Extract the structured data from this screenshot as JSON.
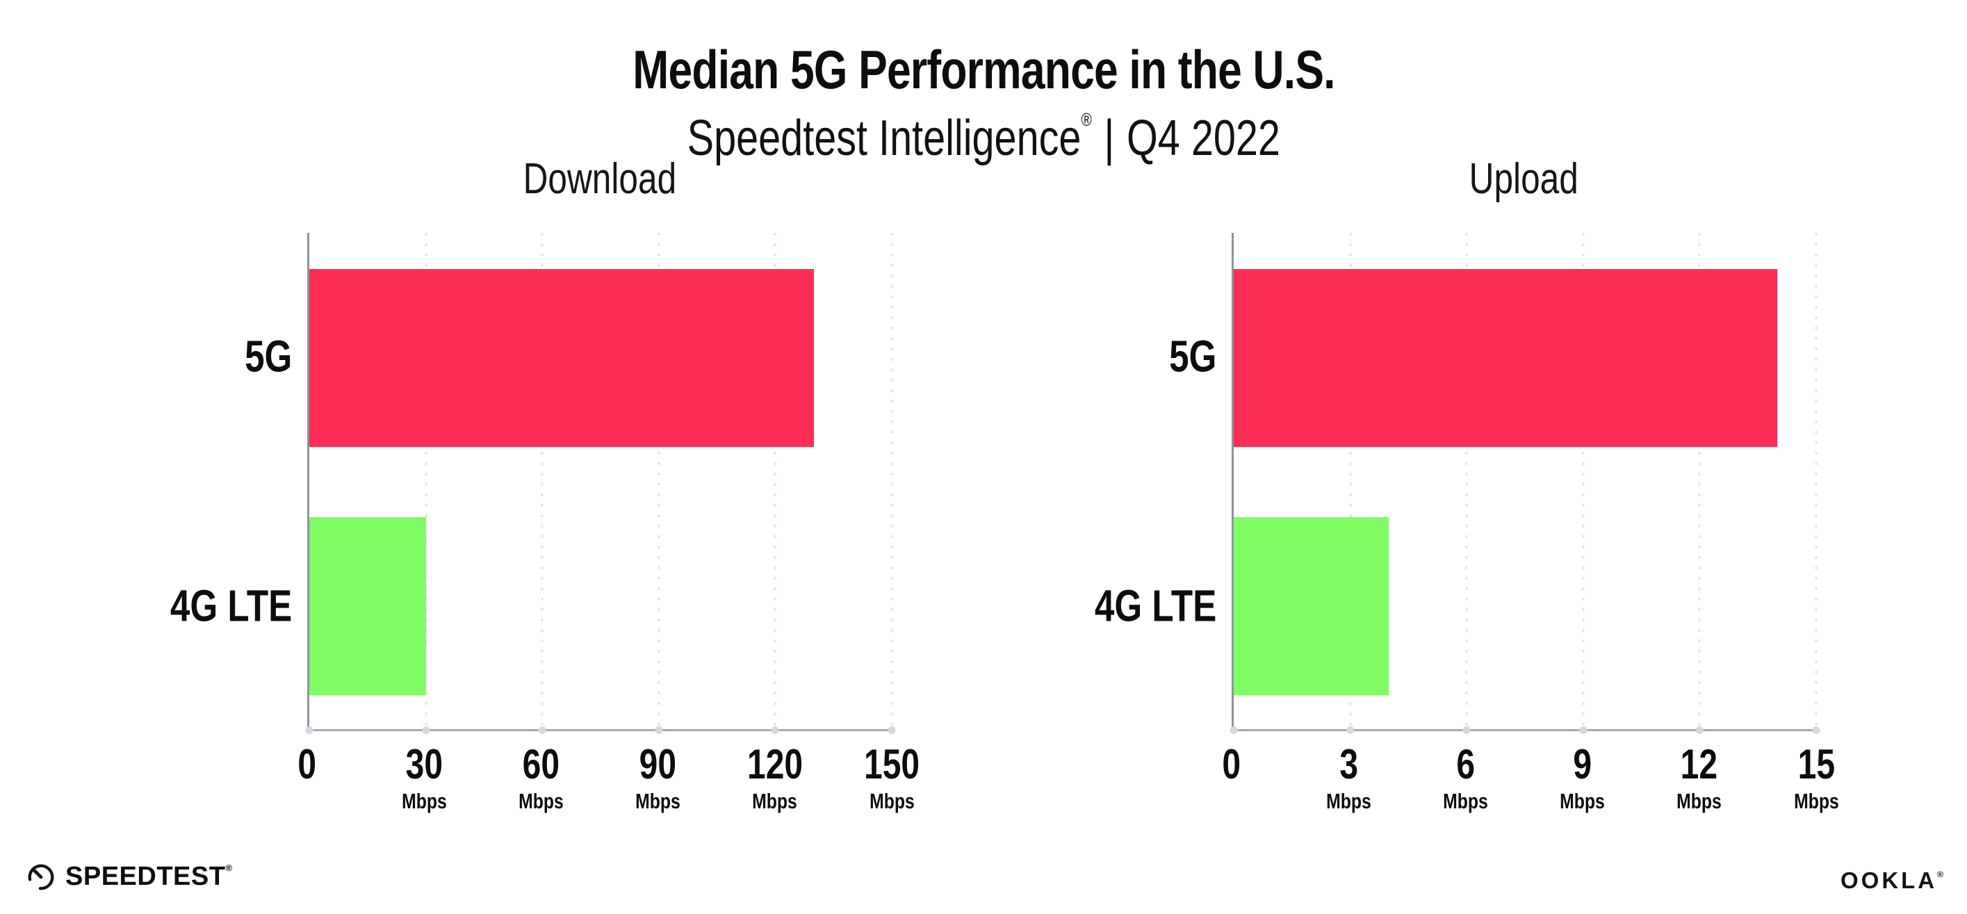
{
  "header": {
    "title": "Median 5G Performance in the U.S.",
    "subtitle_brand": "Speedtest Intelligence",
    "subtitle_trademark": "®",
    "subtitle_separator": "|",
    "subtitle_period": "Q4 2022"
  },
  "chart_data": [
    {
      "type": "bar",
      "orientation": "horizontal",
      "title": "Download",
      "categories": [
        "5G",
        "4G LTE"
      ],
      "values": [
        130,
        30
      ],
      "unit": "Mbps",
      "xlabel": "",
      "ylabel": "",
      "xlim": [
        0,
        150
      ],
      "xticks": [
        0,
        30,
        60,
        90,
        120,
        150
      ],
      "grid": "dotted-vertical-light",
      "legend": "none",
      "bar_colors": [
        "#fd2e56",
        "#80fc64"
      ]
    },
    {
      "type": "bar",
      "orientation": "horizontal",
      "title": "Upload",
      "categories": [
        "5G",
        "4G LTE"
      ],
      "values": [
        14,
        4
      ],
      "unit": "Mbps",
      "xlabel": "",
      "ylabel": "",
      "xlim": [
        0,
        15
      ],
      "xticks": [
        0,
        3,
        6,
        9,
        12,
        15
      ],
      "grid": "dotted-vertical-light",
      "legend": "none",
      "bar_colors": [
        "#fd2e56",
        "#80fc64"
      ]
    }
  ],
  "footer": {
    "speedtest_logo_text": "SPEEDTEST",
    "speedtest_trademark": "®",
    "ookla_logo_text": "OOKLA",
    "ookla_trademark": "®"
  },
  "colors": {
    "bar_5g": "#fd2e56",
    "bar_4g_lte": "#80fc64",
    "axis": "#9b9ba1",
    "gridline": "#e2e2ec",
    "tick_dot": "#d6d6e0",
    "text": "#0d0d0d",
    "background": "#ffffff"
  }
}
